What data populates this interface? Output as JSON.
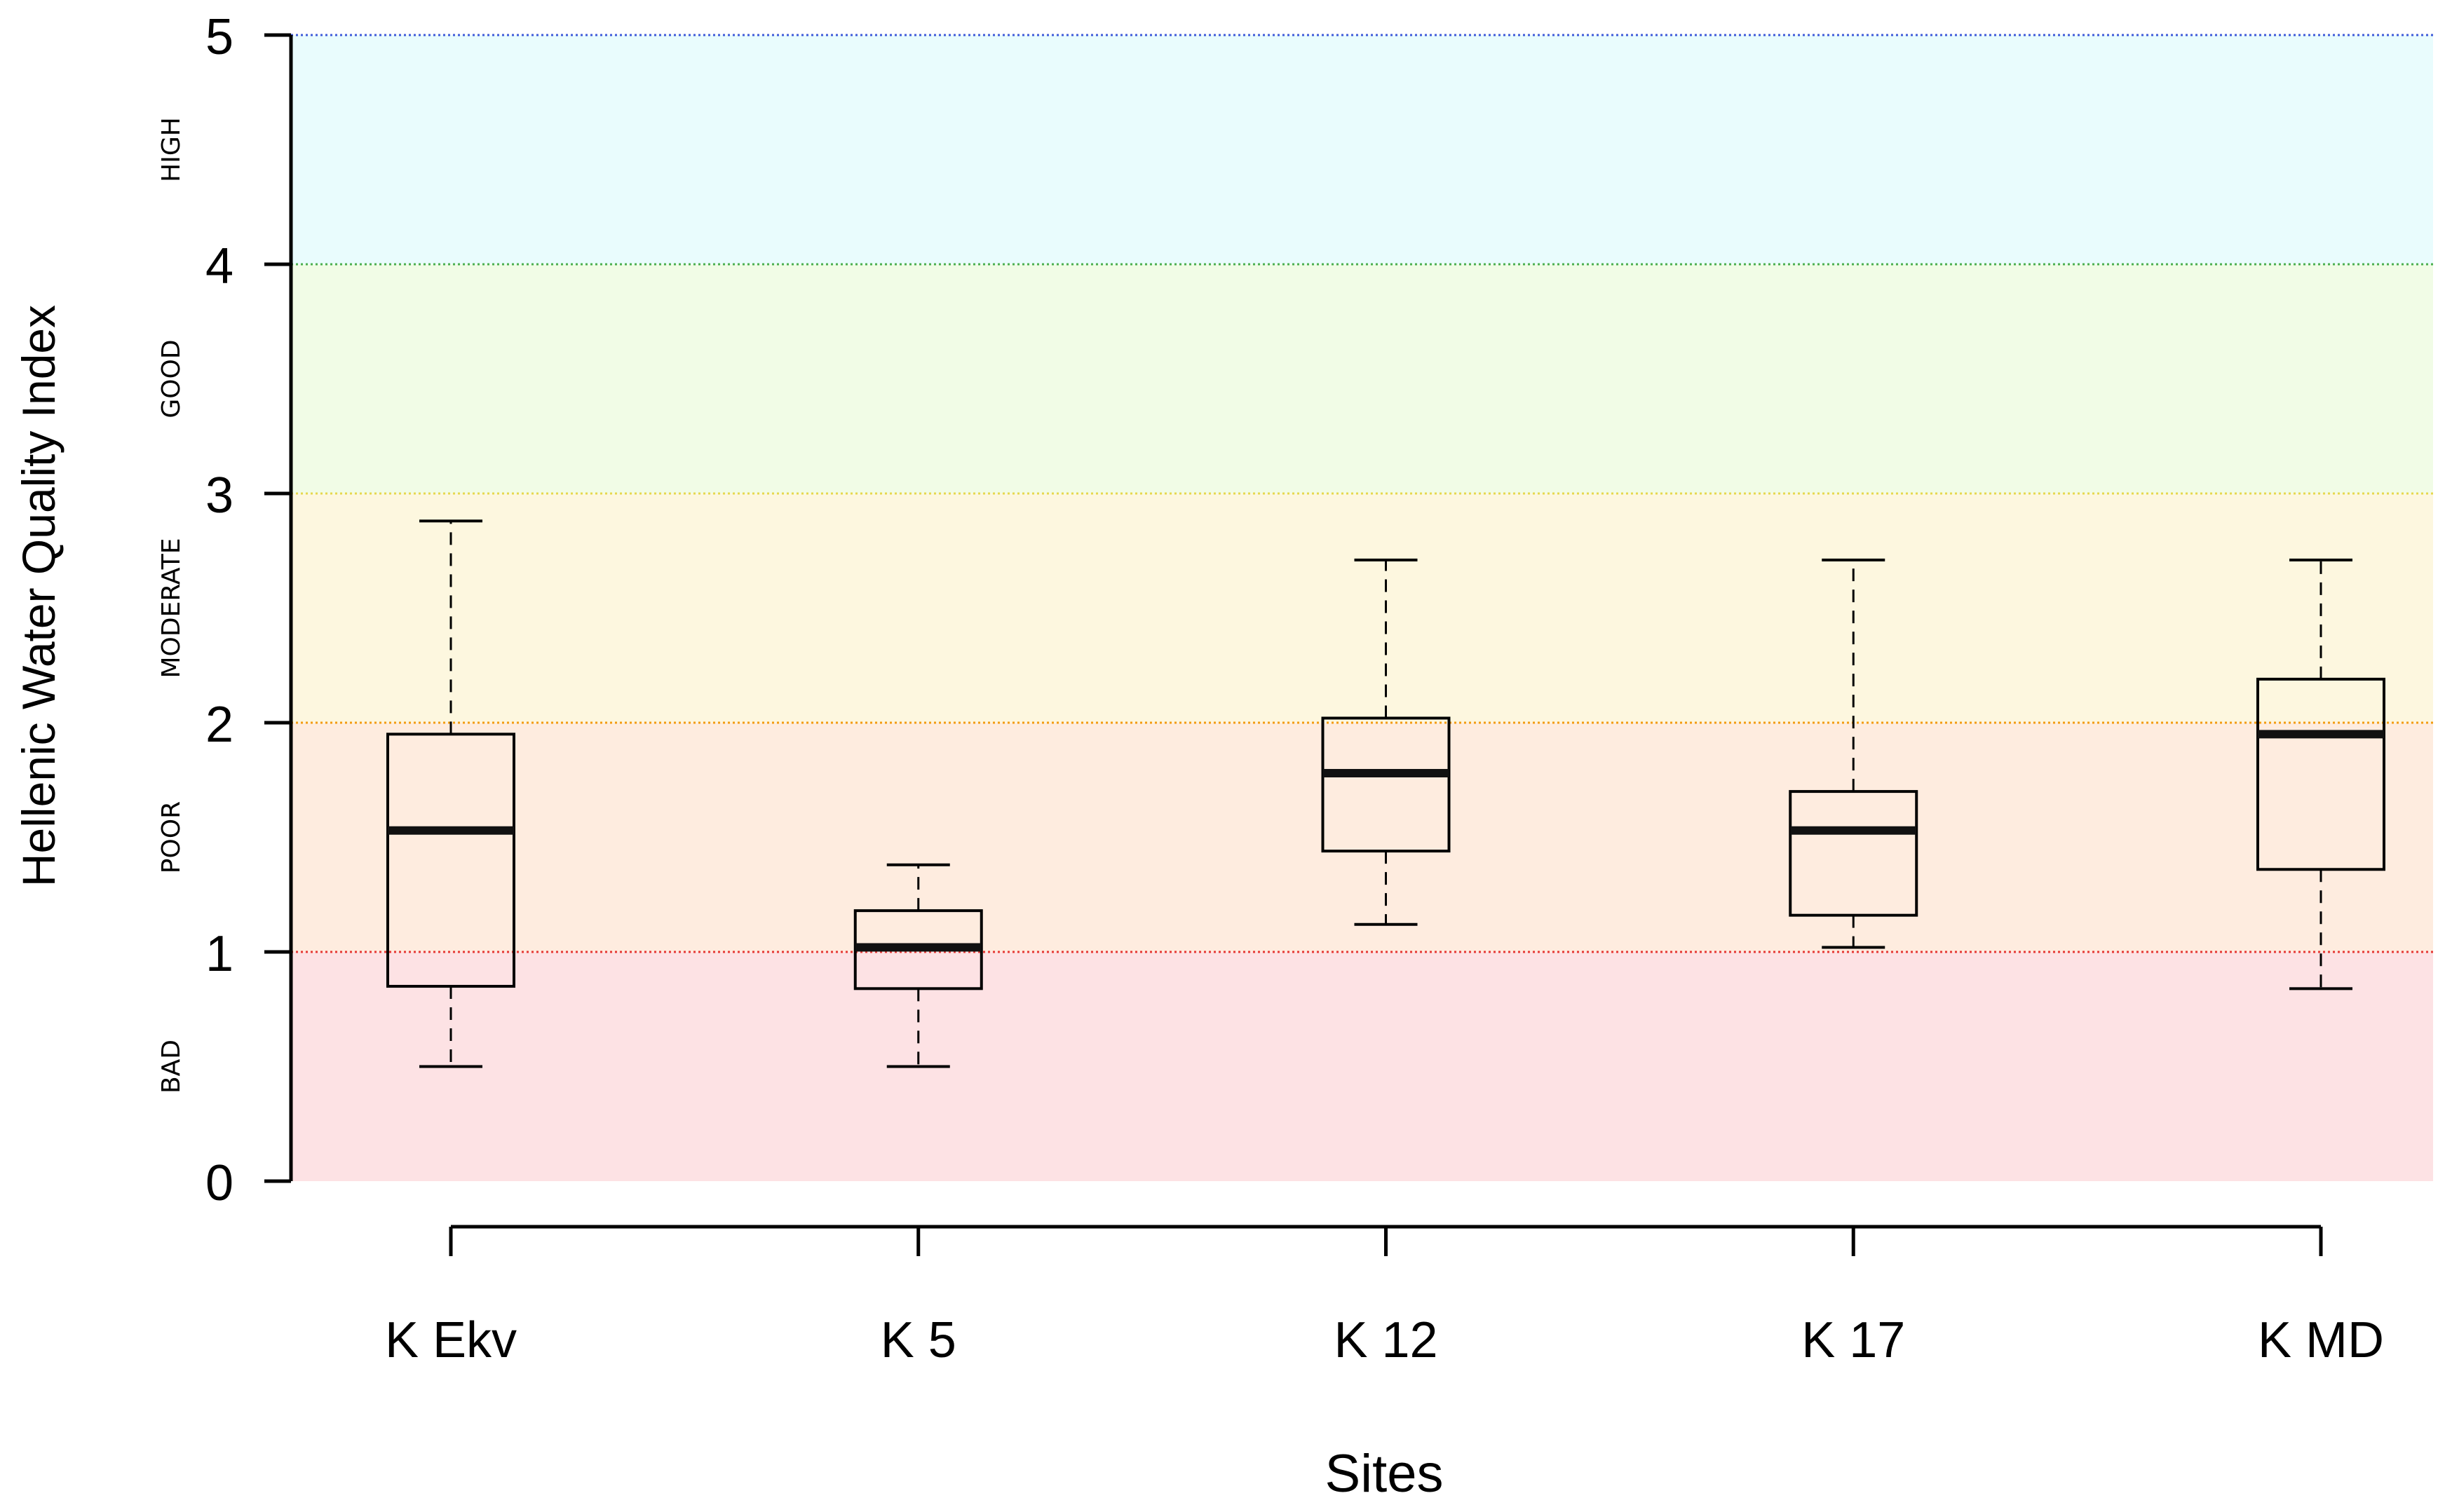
{
  "chart_data": {
    "type": "boxplot",
    "title": "",
    "xlabel": "Sites",
    "ylabel": "Hellenic Water Quality Index",
    "ylim": [
      0,
      5
    ],
    "yticks": [
      "0",
      "1",
      "2",
      "3",
      "4",
      "5"
    ],
    "categories": [
      "K Ekv",
      "K 5",
      "K 12",
      "K 17",
      "K MD"
    ],
    "boxes": [
      {
        "name": "K Ekv",
        "min": 0.5,
        "q1": 0.85,
        "median": 1.53,
        "q3": 1.95,
        "max": 2.88
      },
      {
        "name": "K 5",
        "min": 0.5,
        "q1": 0.84,
        "median": 1.02,
        "q3": 1.18,
        "max": 1.38
      },
      {
        "name": "K 12",
        "min": 1.12,
        "q1": 1.44,
        "median": 1.78,
        "q3": 2.02,
        "max": 2.71
      },
      {
        "name": "K 17",
        "min": 1.02,
        "q1": 1.16,
        "median": 1.53,
        "q3": 1.7,
        "max": 2.71
      },
      {
        "name": "K MD",
        "min": 0.84,
        "q1": 1.36,
        "median": 1.95,
        "q3": 2.19,
        "max": 2.71
      }
    ],
    "bands": [
      {
        "label": "BAD",
        "from": 0,
        "to": 1,
        "fill": "#fde2e4",
        "line": "#e53935"
      },
      {
        "label": "POOR",
        "from": 1,
        "to": 2,
        "fill": "#feecdf",
        "line": "#f39c12"
      },
      {
        "label": "MODERATE",
        "from": 2,
        "to": 3,
        "fill": "#fdf7df",
        "line": "#e6d84f"
      },
      {
        "label": "GOOD",
        "from": 3,
        "to": 4,
        "fill": "#f1fce6",
        "line": "#4caf50"
      },
      {
        "label": "HIGH",
        "from": 4,
        "to": 5,
        "fill": "#e9fcfd",
        "line": "#3f5bd9"
      }
    ]
  }
}
